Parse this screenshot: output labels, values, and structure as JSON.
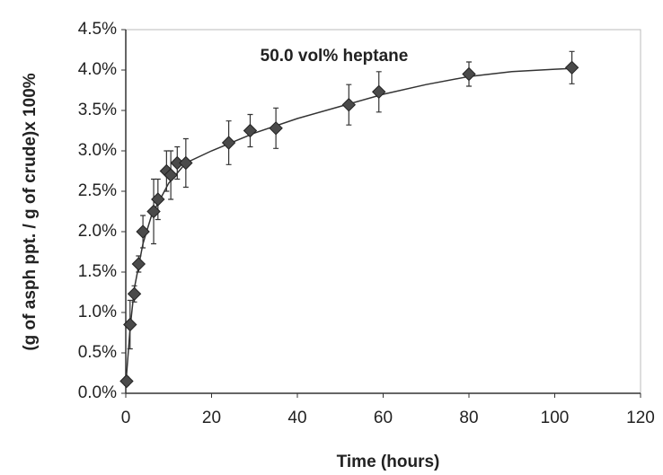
{
  "chart_data": {
    "type": "scatter",
    "annotation": "50.0 vol% heptane",
    "x_label": "Time (hours)",
    "y_label": "(g of asph ppt. / g of crude)x 100%",
    "xlim": [
      0,
      120
    ],
    "xticks": [
      0,
      20,
      40,
      60,
      80,
      100,
      120
    ],
    "ylim": [
      0,
      4.5
    ],
    "yticks": [
      {
        "value": 0,
        "label": "0.0%"
      },
      {
        "value": 0.5,
        "label": "0.5%"
      },
      {
        "value": 1,
        "label": "1.0%"
      },
      {
        "value": 1.5,
        "label": "1.5%"
      },
      {
        "value": 2,
        "label": "2.0%"
      },
      {
        "value": 2.5,
        "label": "2.5%"
      },
      {
        "value": 3,
        "label": "3.0%"
      },
      {
        "value": 3.5,
        "label": "3.5%"
      },
      {
        "value": 4,
        "label": "4.0%"
      },
      {
        "value": 4.5,
        "label": "4.5%"
      }
    ],
    "grid": false,
    "series": [
      {
        "color": "#4a4a4a",
        "x": [
          0.2,
          1,
          2,
          3,
          4,
          6.5,
          7.5,
          9.5,
          10.5,
          12,
          14,
          24,
          29,
          35,
          52,
          59,
          80,
          104
        ],
        "values": [
          0.15,
          0.85,
          1.23,
          1.6,
          2.0,
          2.25,
          2.4,
          2.75,
          2.7,
          2.85,
          2.85,
          3.1,
          3.25,
          3.28,
          3.57,
          3.73,
          3.95,
          4.03
        ],
        "errors": [
          0.05,
          0.3,
          0.1,
          0.1,
          0.2,
          0.4,
          0.25,
          0.25,
          0.3,
          0.2,
          0.3,
          0.27,
          0.2,
          0.25,
          0.25,
          0.25,
          0.15,
          0.2
        ]
      }
    ],
    "fit": {
      "color": "#333333",
      "x": [
        0,
        1,
        2,
        4,
        6,
        10,
        14,
        20,
        30,
        40,
        50,
        60,
        70,
        80,
        90,
        100,
        104
      ],
      "values": [
        0.1,
        0.8,
        1.3,
        1.85,
        2.2,
        2.6,
        2.85,
        3.0,
        3.22,
        3.4,
        3.55,
        3.7,
        3.82,
        3.92,
        3.98,
        4.01,
        4.02
      ]
    }
  }
}
